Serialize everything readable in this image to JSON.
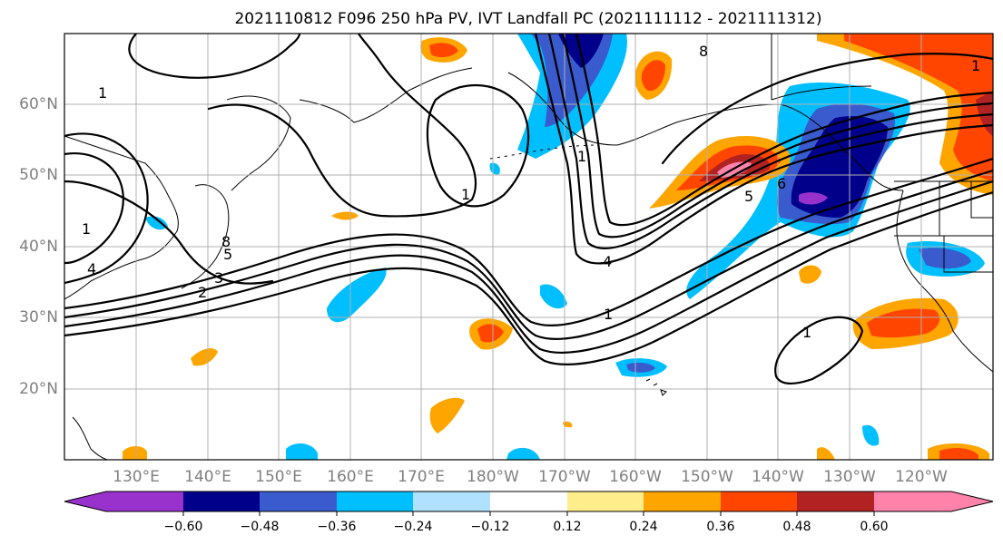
{
  "title": "2021110812 F096 250 hPa PV, IVT Landfall PC (2021111112 - 2021111312)",
  "lat_labels": [
    "60°N",
    "50°N",
    "40°N",
    "30°N",
    "20°N"
  ],
  "lon_labels": [
    "130°E",
    "140°E",
    "150°E",
    "160°E",
    "170°E",
    "180°W",
    "170°W",
    "160°W",
    "150°W",
    "140°W",
    "130°W",
    "120°W"
  ],
  "colorbar": {
    "tick_labels": [
      "−0.60",
      "−0.48",
      "−0.36",
      "−0.24",
      "−0.12",
      "0.12",
      "0.24",
      "0.36",
      "0.48",
      "0.60"
    ],
    "colors": [
      "#9932cc",
      "#00008b",
      "#3a5bcd",
      "#00bfff",
      "#b0e2ff",
      "#ffffff",
      "#ffec8b",
      "#ffa500",
      "#ff4500",
      "#b22222",
      "#ff82ab"
    ],
    "extend": "both"
  },
  "contour_labels": [
    "1",
    "1",
    "1",
    "1",
    "1",
    "1",
    "1",
    "2",
    "3",
    "4",
    "4",
    "5",
    "5",
    "6",
    "8",
    "8"
  ],
  "map": {
    "projection": "PlateCarree",
    "lon_range": "120°E to 115°W",
    "lat_range": "10°N to 70°N",
    "gridlines": true
  }
}
